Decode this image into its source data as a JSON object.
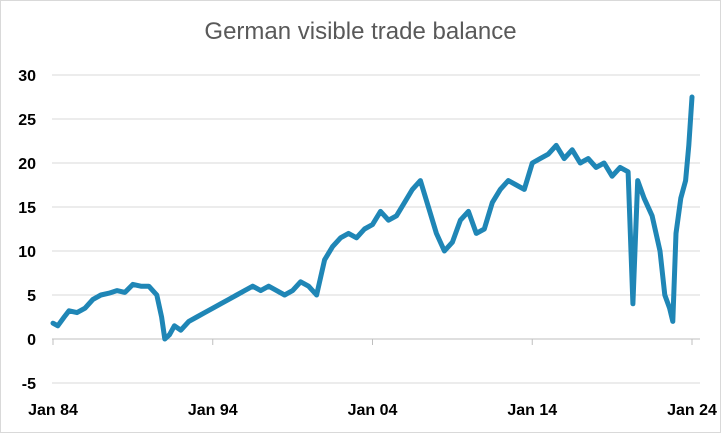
{
  "chart_data": {
    "type": "line",
    "title": "German visible trade balance",
    "xlabel": "",
    "ylabel": "",
    "ylim": [
      -5,
      30
    ],
    "yticks": [
      "30",
      "25",
      "20",
      "15",
      "10",
      "5",
      "0",
      "-5"
    ],
    "xticks": [
      "Jan 84",
      "Jan 94",
      "Jan 04",
      "Jan 14",
      "Jan 24"
    ],
    "grid": "horizontal",
    "line_color": "#1f86b6",
    "series": [
      {
        "name": "",
        "x": [
          1984.0,
          1984.3,
          1984.7,
          1985.0,
          1985.5,
          1986.0,
          1986.5,
          1987.0,
          1987.5,
          1988.0,
          1988.5,
          1989.0,
          1989.5,
          1990.0,
          1990.5,
          1990.8,
          1991.0,
          1991.3,
          1991.6,
          1992.0,
          1992.5,
          1993.0,
          1993.5,
          1994.0,
          1994.5,
          1995.0,
          1995.5,
          1996.0,
          1996.5,
          1997.0,
          1997.5,
          1998.0,
          1998.5,
          1999.0,
          1999.5,
          2000.0,
          2000.5,
          2001.0,
          2001.5,
          2002.0,
          2002.5,
          2003.0,
          2003.5,
          2004.0,
          2004.5,
          2005.0,
          2005.5,
          2006.0,
          2006.5,
          2007.0,
          2007.5,
          2008.0,
          2008.5,
          2009.0,
          2009.5,
          2010.0,
          2010.5,
          2011.0,
          2011.5,
          2012.0,
          2012.5,
          2013.0,
          2013.5,
          2014.0,
          2014.5,
          2015.0,
          2015.5,
          2016.0,
          2016.5,
          2017.0,
          2017.5,
          2018.0,
          2018.5,
          2019.0,
          2019.5,
          2020.0,
          2020.3,
          2020.6,
          2021.0,
          2021.5,
          2022.0,
          2022.3,
          2022.6,
          2022.8,
          2023.0,
          2023.3,
          2023.6,
          2023.8,
          2024.0
        ],
        "values": [
          1.8,
          1.5,
          2.5,
          3.2,
          3.0,
          3.5,
          4.5,
          5.0,
          5.2,
          5.5,
          5.3,
          6.2,
          6.0,
          6.0,
          5.0,
          2.5,
          0.0,
          0.5,
          1.5,
          1.0,
          2.0,
          2.5,
          3.0,
          3.5,
          4.0,
          4.5,
          5.0,
          5.5,
          6.0,
          5.5,
          6.0,
          5.5,
          5.0,
          5.5,
          6.5,
          6.0,
          5.0,
          9.0,
          10.5,
          11.5,
          12.0,
          11.5,
          12.5,
          13.0,
          14.5,
          13.5,
          14.0,
          15.5,
          17.0,
          18.0,
          15.0,
          12.0,
          10.0,
          11.0,
          13.5,
          14.5,
          12.0,
          12.5,
          15.5,
          17.0,
          18.0,
          17.5,
          17.0,
          20.0,
          20.5,
          21.0,
          22.0,
          20.5,
          21.5,
          20.0,
          20.5,
          19.5,
          20.0,
          18.5,
          19.5,
          19.0,
          4.0,
          18.0,
          16.0,
          14.0,
          10.0,
          5.0,
          3.5,
          2.0,
          12.0,
          16.0,
          18.0,
          22.0,
          27.5
        ]
      }
    ]
  }
}
